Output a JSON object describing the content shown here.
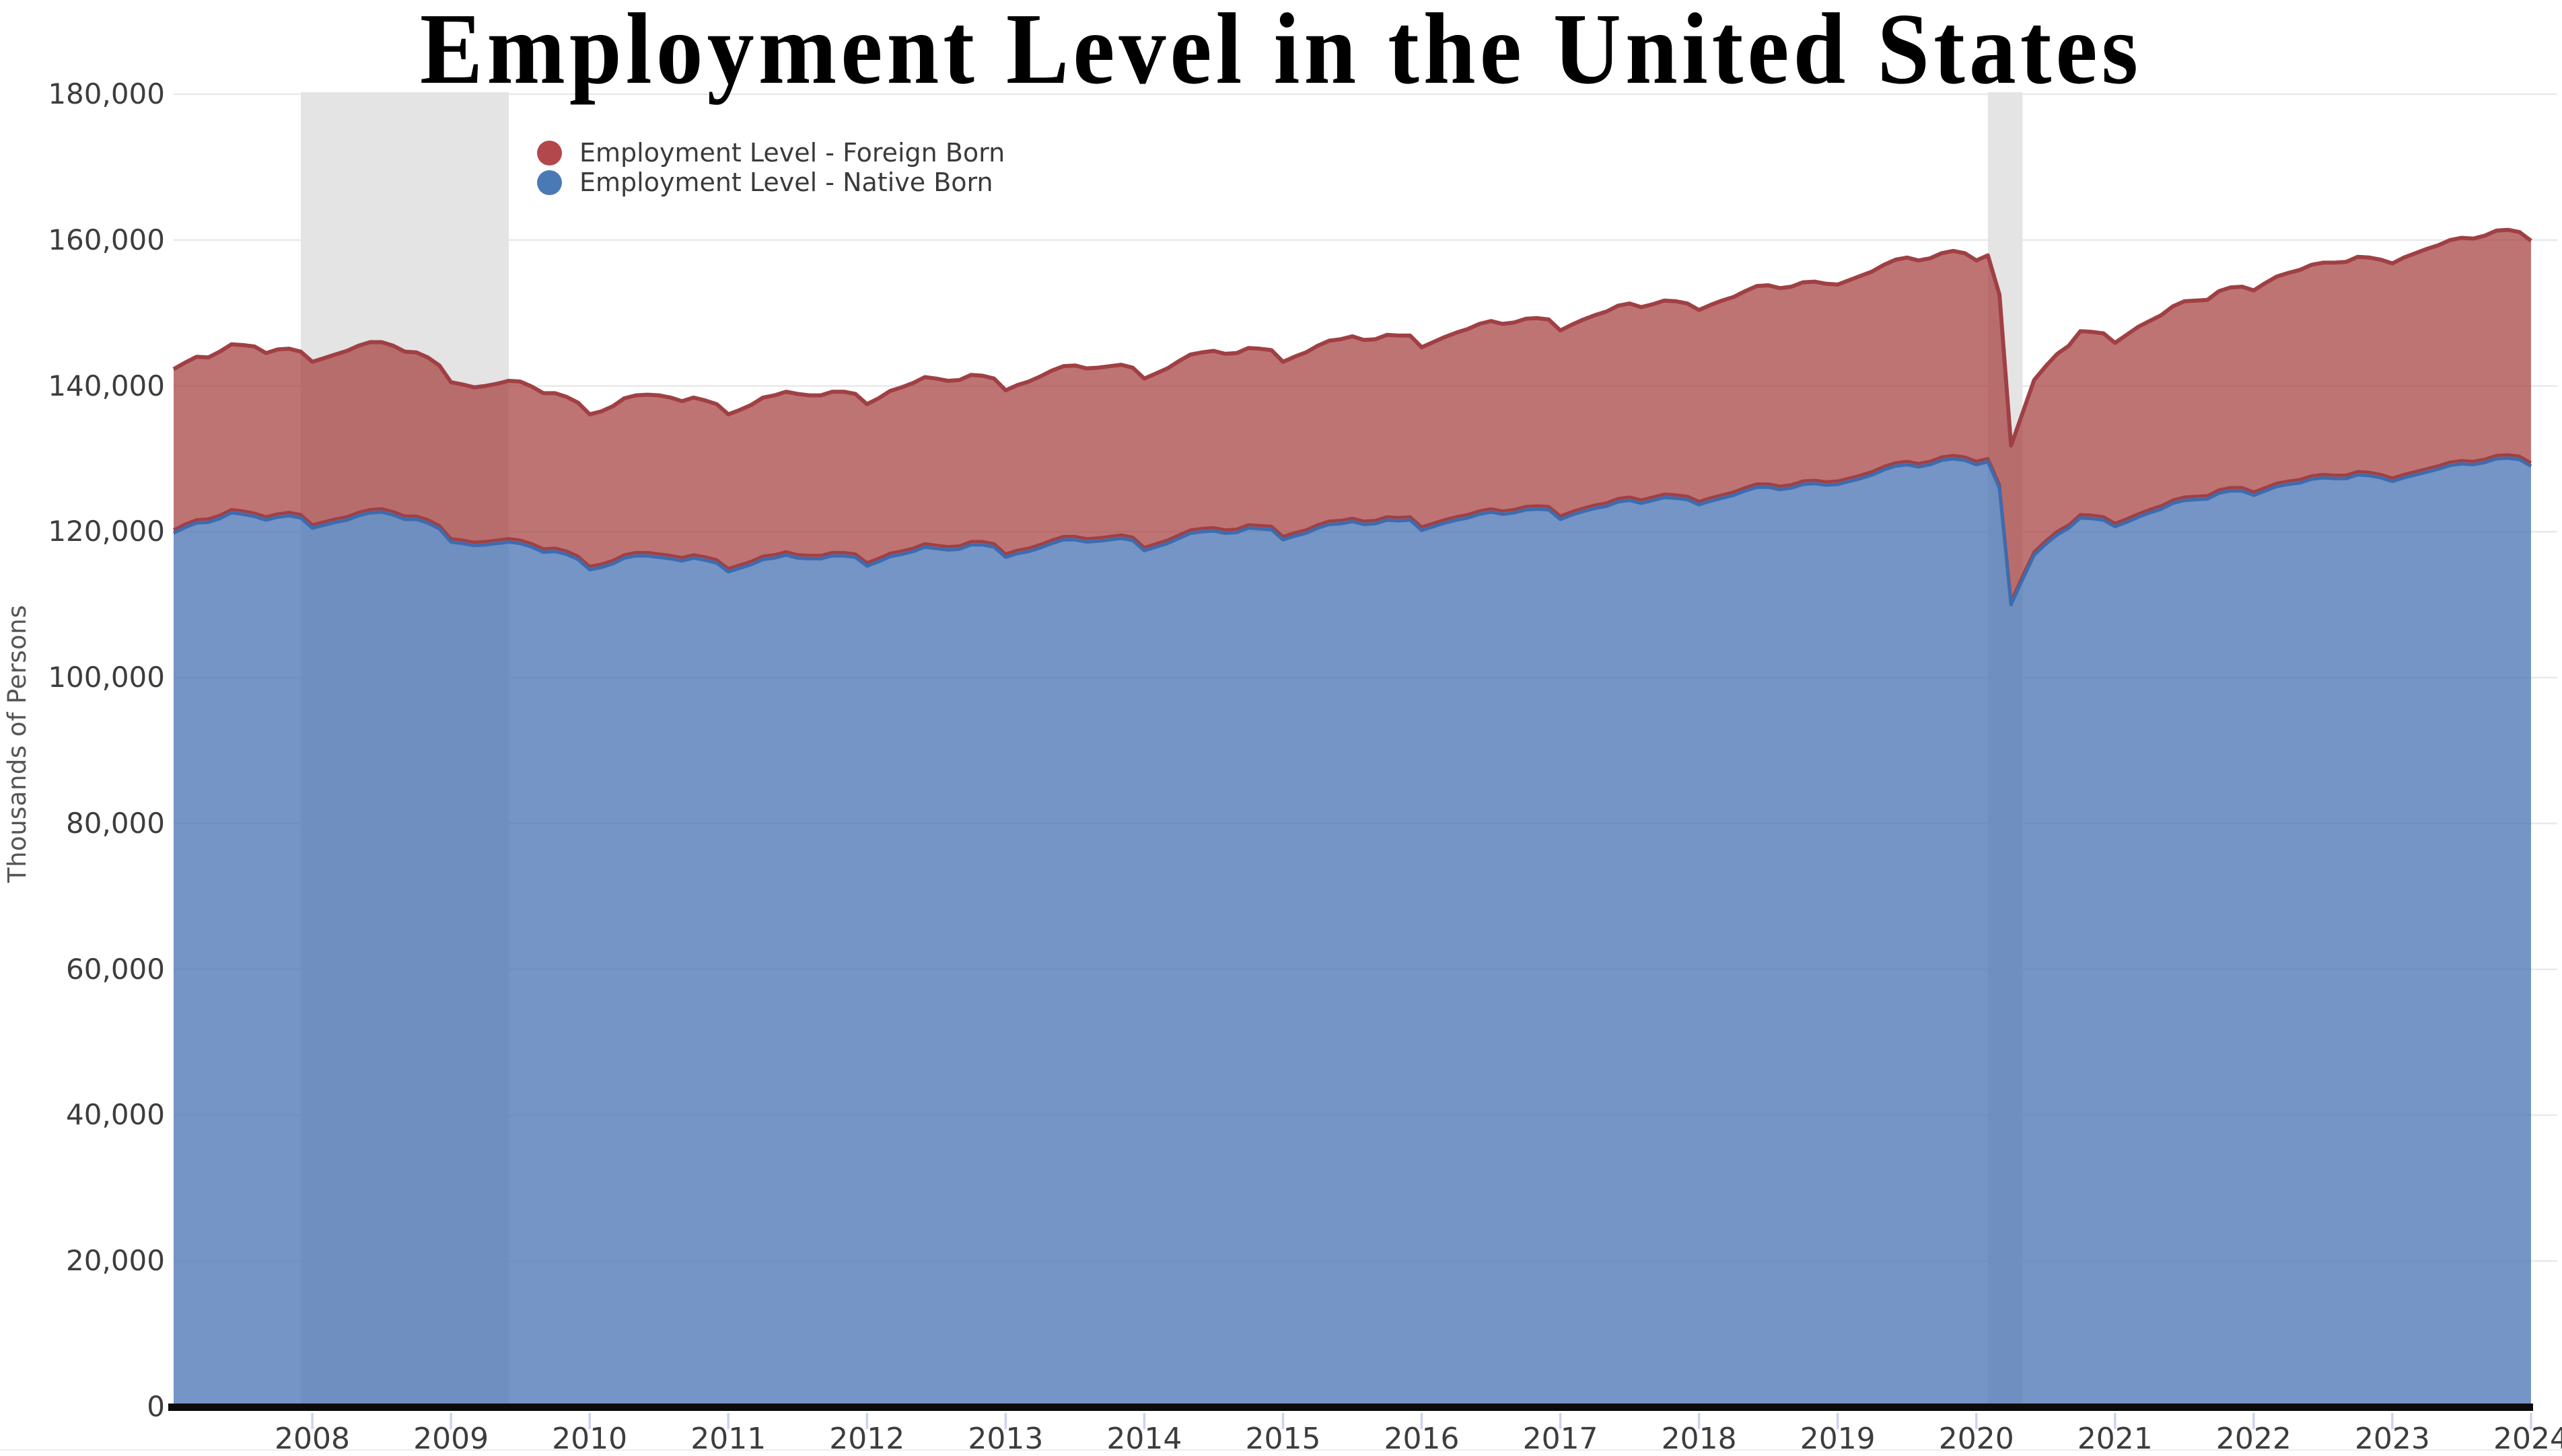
{
  "title": {
    "text": "Employment Level in the United States",
    "color": "#000000"
  },
  "y_axis": {
    "title": "Thousands of Persons",
    "tick_values": [
      0,
      20000,
      40000,
      60000,
      80000,
      100000,
      120000,
      140000,
      160000,
      180000
    ],
    "tick_labels": [
      "0",
      "20,000",
      "40,000",
      "60,000",
      "80,000",
      "100,000",
      "120,000",
      "140,000",
      "160,000",
      "180,000"
    ],
    "label_color": "#3d3d3d"
  },
  "x_axis": {
    "tick_values": [
      2008,
      2009,
      2010,
      2011,
      2012,
      2013,
      2014,
      2015,
      2016,
      2017,
      2018,
      2019,
      2020,
      2021,
      2022,
      2023,
      2024
    ],
    "tick_labels": [
      "2008",
      "2009",
      "2010",
      "2011",
      "2012",
      "2013",
      "2014",
      "2015",
      "2016",
      "2017",
      "2018",
      "2019",
      "2020",
      "2021",
      "2022",
      "2023",
      "2024"
    ],
    "label_color": "#3d3d3d",
    "tick_line_color": "#ccd4ea",
    "axis_line_color": "#0b0b0b"
  },
  "legend": {
    "items": [
      {
        "label": "Employment Level - Foreign Born",
        "marker_color": "#b2474c"
      },
      {
        "label": "Employment Level - Native Born",
        "marker_color": "#4a7ab5"
      }
    ],
    "text_color": "#3a3a3a"
  },
  "chart_data": {
    "type": "area",
    "stacked": true,
    "title": "Employment Level in the United States",
    "ylabel": "Thousands of Persons",
    "xlabel": "",
    "x_unit": "monthly from January 2007 to January 2024",
    "xlim": [
      2007.0,
      2024.0
    ],
    "ylim": [
      0,
      180000
    ],
    "grid_values": [
      20000,
      40000,
      60000,
      80000,
      100000,
      120000,
      140000,
      160000,
      180000
    ],
    "gridline_color": "#e9e9e9",
    "band_color": "#e4e4e4",
    "recessions": [
      {
        "start": 2007.917,
        "end": 2009.417
      },
      {
        "start": 2020.083,
        "end": 2020.333
      }
    ],
    "series": [
      {
        "name": "Employment Level - Native Born",
        "fill": "rgba(74,117,179,0.77)",
        "stroke": "#3c6cb0",
        "values": [
          119800,
          120600,
          121200,
          121300,
          121800,
          122600,
          122400,
          122100,
          121600,
          122000,
          122200,
          121900,
          120500,
          120900,
          121300,
          121600,
          122200,
          122600,
          122700,
          122300,
          121700,
          121700,
          121200,
          120400,
          118600,
          118400,
          118100,
          118200,
          118400,
          118600,
          118400,
          117900,
          117200,
          117300,
          116900,
          116200,
          114800,
          115100,
          115600,
          116400,
          116700,
          116700,
          116500,
          116300,
          116000,
          116400,
          116100,
          115700,
          114500,
          115000,
          115500,
          116200,
          116400,
          116800,
          116400,
          116300,
          116300,
          116700,
          116700,
          116500,
          115300,
          115900,
          116600,
          116900,
          117300,
          117900,
          117700,
          117500,
          117600,
          118200,
          118200,
          117900,
          116500,
          117000,
          117300,
          117800,
          118400,
          118900,
          118900,
          118600,
          118700,
          118900,
          119100,
          118800,
          117400,
          117900,
          118400,
          119100,
          119800,
          120000,
          120100,
          119800,
          119900,
          120500,
          120400,
          120300,
          118900,
          119400,
          119800,
          120500,
          121000,
          121100,
          121400,
          121000,
          121100,
          121600,
          121500,
          121600,
          120200,
          120700,
          121200,
          121600,
          121900,
          122400,
          122700,
          122400,
          122600,
          123000,
          123100,
          123000,
          121700,
          122300,
          122800,
          123200,
          123500,
          124100,
          124300,
          123900,
          124300,
          124700,
          124600,
          124400,
          123700,
          124200,
          124600,
          125000,
          125600,
          126100,
          126100,
          125800,
          126000,
          126500,
          126600,
          126400,
          126500,
          126900,
          127300,
          127800,
          128500,
          129000,
          129200,
          128900,
          129200,
          129800,
          130000,
          129800,
          129200,
          129600,
          126000,
          110000,
          113500,
          116800,
          118300,
          119600,
          120500,
          121900,
          121800,
          121600,
          120700,
          121300,
          122000,
          122600,
          123100,
          123900,
          124300,
          124400,
          124500,
          125300,
          125600,
          125600,
          125000,
          125600,
          126200,
          126500,
          126700,
          127200,
          127400,
          127300,
          127300,
          127800,
          127700,
          127400,
          126900,
          127400,
          127800,
          128200,
          128600,
          129100,
          129300,
          129200,
          129500,
          130000,
          130100,
          129900,
          129000
        ]
      },
      {
        "name": "Employment Level - Foreign Born",
        "fill": "rgba(166,62,62,0.72)",
        "stroke": "#a04044",
        "values": [
          22500,
          22600,
          22800,
          22600,
          22900,
          23100,
          23200,
          23300,
          22900,
          23000,
          22900,
          22800,
          22800,
          22900,
          23000,
          23200,
          23300,
          23400,
          23300,
          23200,
          23000,
          22900,
          22700,
          22400,
          21900,
          21800,
          21700,
          21800,
          21900,
          22100,
          22200,
          22000,
          21800,
          21700,
          21600,
          21500,
          21300,
          21400,
          21600,
          21900,
          22000,
          22100,
          22200,
          22100,
          21900,
          22000,
          21900,
          21800,
          21600,
          21700,
          21900,
          22200,
          22300,
          22400,
          22500,
          22400,
          22400,
          22500,
          22500,
          22400,
          22200,
          22400,
          22700,
          22900,
          23100,
          23300,
          23300,
          23200,
          23200,
          23300,
          23200,
          23100,
          22900,
          23100,
          23300,
          23500,
          23700,
          23800,
          23900,
          23800,
          23800,
          23800,
          23800,
          23700,
          23600,
          23800,
          24000,
          24300,
          24500,
          24600,
          24700,
          24600,
          24600,
          24700,
          24700,
          24600,
          24400,
          24600,
          24800,
          25000,
          25200,
          25300,
          25400,
          25300,
          25300,
          25400,
          25400,
          25300,
          25100,
          25300,
          25500,
          25700,
          25900,
          26100,
          26200,
          26100,
          26100,
          26200,
          26200,
          26100,
          25900,
          26100,
          26300,
          26500,
          26700,
          26900,
          27000,
          26900,
          26900,
          27000,
          27000,
          26900,
          26700,
          26900,
          27100,
          27200,
          27400,
          27600,
          27700,
          27600,
          27600,
          27700,
          27700,
          27600,
          27400,
          27600,
          27800,
          27900,
          28100,
          28300,
          28400,
          28300,
          28300,
          28400,
          28500,
          28400,
          28000,
          28300,
          26500,
          21800,
          22800,
          24000,
          24400,
          24800,
          25000,
          25600,
          25600,
          25600,
          25200,
          25700,
          26100,
          26300,
          26600,
          27000,
          27300,
          27300,
          27300,
          27700,
          27900,
          28000,
          28100,
          28500,
          28800,
          29000,
          29200,
          29400,
          29500,
          29600,
          29700,
          29900,
          29900,
          29900,
          29900,
          30200,
          30400,
          30600,
          30700,
          30900,
          31000,
          31000,
          31100,
          31300,
          31300,
          31200,
          30900
        ]
      }
    ]
  }
}
